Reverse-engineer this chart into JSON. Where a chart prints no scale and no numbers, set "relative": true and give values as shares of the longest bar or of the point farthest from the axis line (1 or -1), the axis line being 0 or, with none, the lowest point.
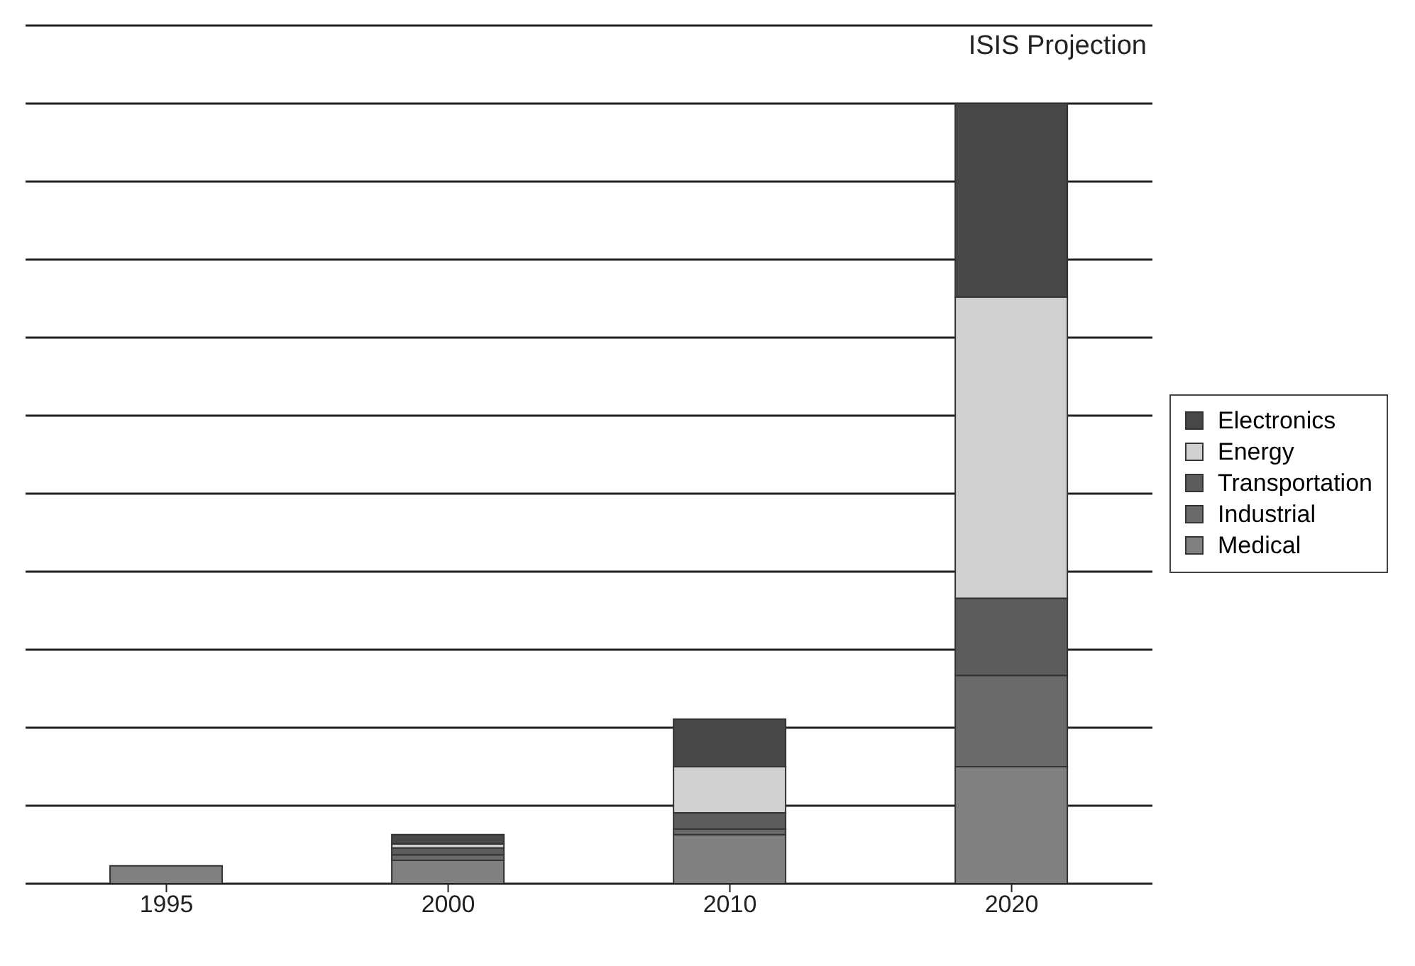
{
  "chart_data": {
    "type": "bar",
    "stacked": true,
    "relative": true,
    "categories": [
      "1995",
      "2000",
      "2010",
      "2020"
    ],
    "series": [
      {
        "name": "Medical",
        "color": "#808080",
        "values": [
          0.023,
          0.03,
          0.063,
          0.15
        ]
      },
      {
        "name": "Industrial",
        "color": "#6a6a6a",
        "values": [
          null,
          0.007,
          0.007,
          0.117
        ]
      },
      {
        "name": "Transportation",
        "color": "#5c5c5c",
        "values": [
          null,
          0.009,
          0.021,
          0.099
        ]
      },
      {
        "name": "Energy",
        "color": "#d0d0d0",
        "values": [
          null,
          0.005,
          0.059,
          0.386
        ]
      },
      {
        "name": "Electronics",
        "color": "#474747",
        "values": [
          null,
          0.012,
          0.061,
          0.248
        ]
      }
    ],
    "annotations": [
      "ISIS Projection"
    ],
    "grid": "y",
    "legend": "right"
  }
}
